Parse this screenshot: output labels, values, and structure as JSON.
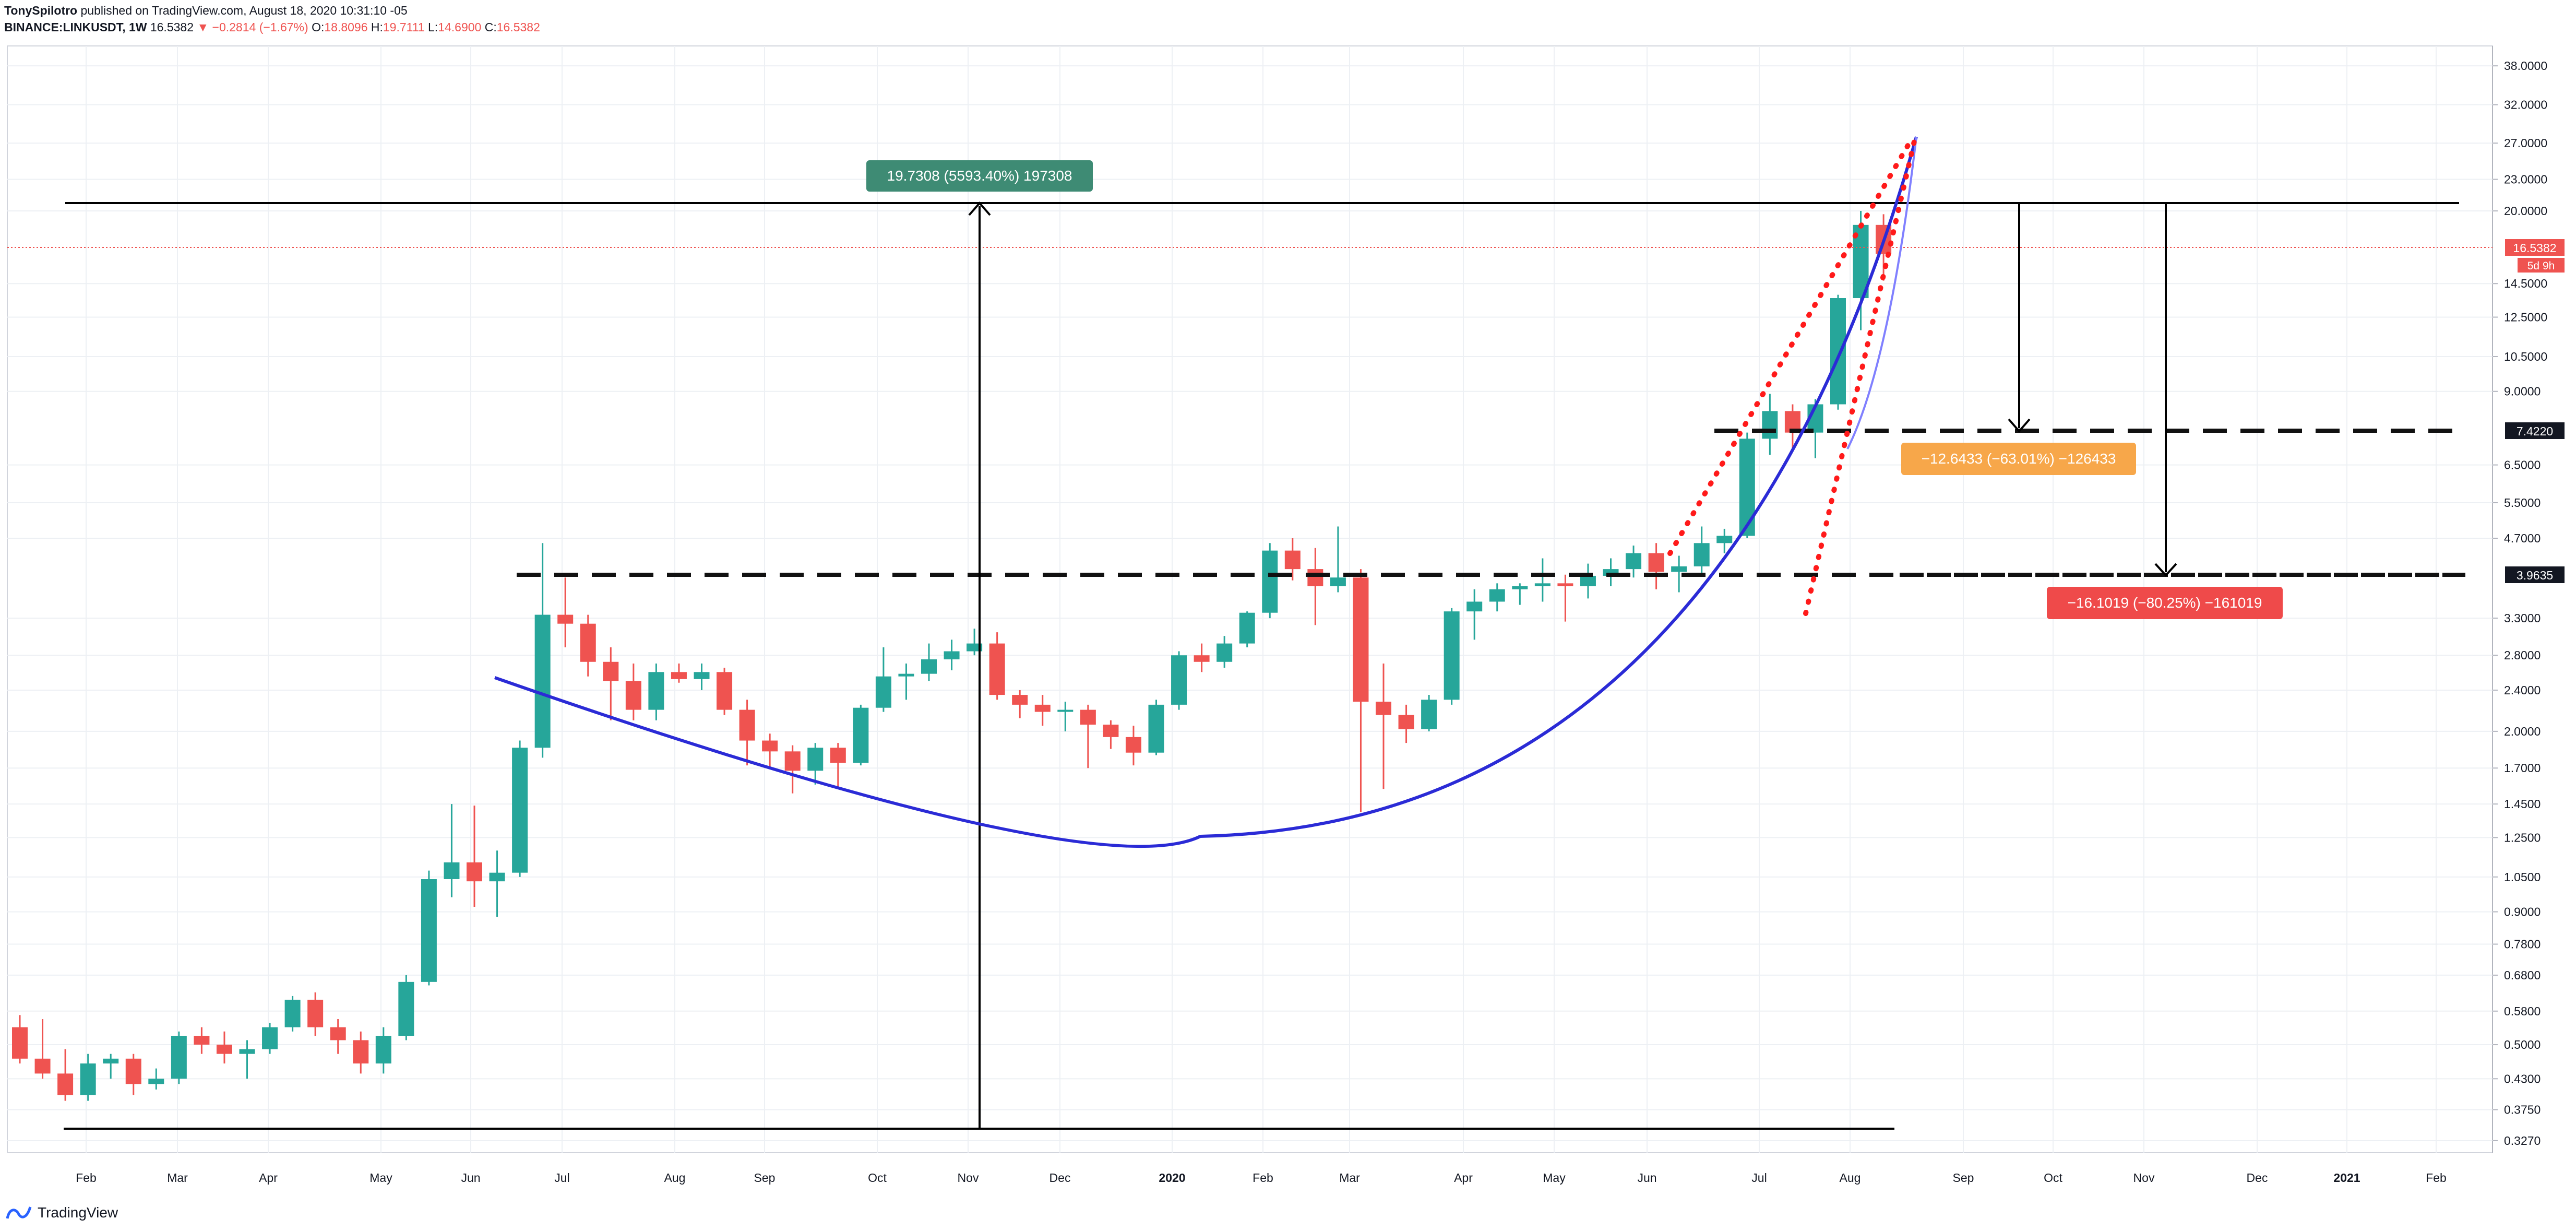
{
  "header": {
    "author": "TonySpilotro",
    "published": "published on TradingView.com, August 18, 2020 10:31:10 -05",
    "symbol": "BINANCE:LINKUSDT, 1W",
    "last": "16.5382",
    "change": "−0.2814 (−1.67%)",
    "o_label": "O:",
    "o_value": "18.8096",
    "h_label": "H:",
    "h_value": "19.7111",
    "l_label": "L:",
    "l_value": "14.6900",
    "c_label": "C:",
    "c_value": "16.5382"
  },
  "footer": {
    "brand": "TradingView",
    "icon": "tradingview-logo-icon"
  },
  "colors": {
    "up": "#26a69a",
    "down": "#ef5350",
    "curve": "#2b2bd6",
    "dotted": "#ff1a1a",
    "grid": "#edf0f4"
  },
  "chart_data": {
    "type": "candlestick",
    "scale": "log",
    "ylim": [
      0.31,
      41.5
    ],
    "grid": true,
    "y_ticks": [
      "38.0000",
      "32.0000",
      "27.0000",
      "23.0000",
      "20.0000",
      "14.5000",
      "12.5000",
      "10.5000",
      "9.0000",
      "6.5000",
      "5.5000",
      "4.7000",
      "3.3000",
      "2.8000",
      "2.4000",
      "2.0000",
      "1.7000",
      "1.4500",
      "1.2500",
      "1.0500",
      "0.9000",
      "0.7800",
      "0.6800",
      "0.5800",
      "0.5000",
      "0.4300",
      "0.3750",
      "0.3270"
    ],
    "x_ticks": [
      "Feb",
      "Mar",
      "Apr",
      "May",
      "Jun",
      "Jul",
      "Aug",
      "Sep",
      "Oct",
      "Nov",
      "Dec",
      "2020",
      "Feb",
      "Mar",
      "Apr",
      "May",
      "Jun",
      "Jul",
      "Aug",
      "Sep",
      "Oct",
      "Nov",
      "Dec",
      "2021",
      "Feb"
    ],
    "price_tags": [
      {
        "value": "16.5382",
        "sub": "5d 9h",
        "style": "current"
      },
      {
        "value": "7.4220",
        "style": "level"
      },
      {
        "value": "3.9635",
        "style": "level"
      }
    ],
    "measurements": [
      {
        "text": "19.7308 (5593.40%) 197308",
        "color": "#3e8b74"
      },
      {
        "text": "−12.6433 (−63.01%) −126433",
        "color": "#f7a74a"
      },
      {
        "text": "−16.1019 (−80.25%) −161019",
        "color": "#ef4a4a"
      }
    ],
    "candles": [
      [
        0.54,
        0.57,
        0.46,
        0.47
      ],
      [
        0.47,
        0.56,
        0.43,
        0.44
      ],
      [
        0.44,
        0.49,
        0.39,
        0.4
      ],
      [
        0.4,
        0.48,
        0.39,
        0.46
      ],
      [
        0.46,
        0.48,
        0.43,
        0.47
      ],
      [
        0.47,
        0.48,
        0.4,
        0.42
      ],
      [
        0.42,
        0.45,
        0.41,
        0.43
      ],
      [
        0.43,
        0.53,
        0.42,
        0.52
      ],
      [
        0.52,
        0.54,
        0.48,
        0.5
      ],
      [
        0.5,
        0.53,
        0.46,
        0.48
      ],
      [
        0.48,
        0.51,
        0.43,
        0.49
      ],
      [
        0.49,
        0.55,
        0.48,
        0.54
      ],
      [
        0.54,
        0.62,
        0.53,
        0.61
      ],
      [
        0.61,
        0.63,
        0.52,
        0.54
      ],
      [
        0.54,
        0.56,
        0.48,
        0.51
      ],
      [
        0.51,
        0.53,
        0.44,
        0.46
      ],
      [
        0.46,
        0.54,
        0.44,
        0.52
      ],
      [
        0.52,
        0.68,
        0.51,
        0.66
      ],
      [
        0.66,
        1.08,
        0.65,
        1.04
      ],
      [
        1.04,
        1.45,
        0.96,
        1.12
      ],
      [
        1.12,
        1.44,
        0.92,
        1.03
      ],
      [
        1.03,
        1.18,
        0.88,
        1.07
      ],
      [
        1.07,
        1.92,
        1.05,
        1.86
      ],
      [
        1.86,
        4.6,
        1.78,
        3.35
      ],
      [
        3.35,
        3.95,
        2.9,
        3.22
      ],
      [
        3.22,
        3.35,
        2.55,
        2.72
      ],
      [
        2.72,
        2.9,
        2.1,
        2.5
      ],
      [
        2.5,
        2.7,
        2.1,
        2.2
      ],
      [
        2.2,
        2.7,
        2.1,
        2.6
      ],
      [
        2.6,
        2.7,
        2.48,
        2.52
      ],
      [
        2.52,
        2.7,
        2.4,
        2.6
      ],
      [
        2.6,
        2.65,
        2.15,
        2.2
      ],
      [
        2.2,
        2.3,
        1.72,
        1.92
      ],
      [
        1.92,
        1.98,
        1.7,
        1.83
      ],
      [
        1.83,
        1.88,
        1.52,
        1.68
      ],
      [
        1.68,
        1.9,
        1.58,
        1.86
      ],
      [
        1.86,
        1.9,
        1.55,
        1.74
      ],
      [
        1.74,
        2.25,
        1.72,
        2.22
      ],
      [
        2.22,
        2.9,
        2.18,
        2.55
      ],
      [
        2.55,
        2.7,
        2.3,
        2.58
      ],
      [
        2.58,
        2.95,
        2.5,
        2.75
      ],
      [
        2.75,
        3.0,
        2.62,
        2.85
      ],
      [
        2.85,
        3.15,
        2.8,
        2.95
      ],
      [
        2.95,
        3.1,
        2.3,
        2.35
      ],
      [
        2.35,
        2.4,
        2.12,
        2.25
      ],
      [
        2.25,
        2.35,
        2.05,
        2.18
      ],
      [
        2.18,
        2.28,
        2.0,
        2.2
      ],
      [
        2.2,
        2.25,
        1.7,
        2.06
      ],
      [
        2.06,
        2.1,
        1.85,
        1.95
      ],
      [
        1.95,
        2.05,
        1.72,
        1.82
      ],
      [
        1.82,
        2.3,
        1.8,
        2.25
      ],
      [
        2.25,
        2.85,
        2.2,
        2.8
      ],
      [
        2.8,
        2.95,
        2.6,
        2.72
      ],
      [
        2.72,
        3.05,
        2.65,
        2.95
      ],
      [
        2.95,
        3.4,
        2.9,
        3.38
      ],
      [
        3.38,
        4.6,
        3.3,
        4.45
      ],
      [
        4.45,
        4.7,
        3.9,
        4.1
      ],
      [
        4.1,
        4.5,
        3.2,
        3.8
      ],
      [
        3.8,
        4.95,
        3.7,
        3.95
      ],
      [
        3.95,
        4.1,
        1.4,
        2.28
      ],
      [
        2.28,
        2.7,
        1.55,
        2.15
      ],
      [
        2.15,
        2.25,
        1.9,
        2.02
      ],
      [
        2.02,
        2.35,
        2.0,
        2.3
      ],
      [
        2.3,
        3.45,
        2.25,
        3.4
      ],
      [
        3.4,
        3.75,
        3.0,
        3.55
      ],
      [
        3.55,
        3.85,
        3.4,
        3.75
      ],
      [
        3.75,
        3.85,
        3.5,
        3.8
      ],
      [
        3.8,
        4.3,
        3.55,
        3.85
      ],
      [
        3.85,
        4.0,
        3.25,
        3.8
      ],
      [
        3.8,
        4.2,
        3.6,
        3.98
      ],
      [
        3.98,
        4.3,
        3.8,
        4.1
      ],
      [
        4.1,
        4.55,
        3.95,
        4.4
      ],
      [
        4.4,
        4.6,
        3.75,
        4.05
      ],
      [
        4.05,
        4.35,
        3.7,
        4.15
      ],
      [
        4.15,
        4.95,
        4.0,
        4.6
      ],
      [
        4.6,
        4.9,
        4.4,
        4.75
      ],
      [
        4.75,
        7.5,
        4.7,
        7.3
      ],
      [
        7.3,
        8.9,
        6.8,
        8.25
      ],
      [
        8.25,
        8.5,
        7.0,
        7.5
      ],
      [
        7.5,
        8.7,
        6.7,
        8.5
      ],
      [
        8.5,
        13.8,
        8.3,
        13.6
      ],
      [
        13.6,
        20.0,
        11.8,
        18.8
      ],
      [
        18.8,
        19.71,
        14.69,
        16.54
      ]
    ]
  }
}
